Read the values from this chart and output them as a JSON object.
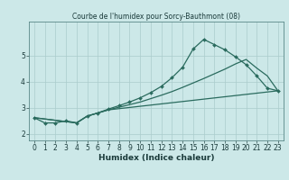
{
  "title": "Courbe de l'humidex pour Sorcy-Bauthmont (08)",
  "xlabel": "Humidex (Indice chaleur)",
  "background_color": "#cce8e8",
  "grid_color": "#aacccc",
  "line_color": "#2a6b5e",
  "xlim": [
    -0.5,
    23.5
  ],
  "ylim": [
    1.75,
    6.3
  ],
  "yticks": [
    2,
    3,
    4,
    5
  ],
  "xticks": [
    0,
    1,
    2,
    3,
    4,
    5,
    6,
    7,
    8,
    9,
    10,
    11,
    12,
    13,
    14,
    15,
    16,
    17,
    18,
    19,
    20,
    21,
    22,
    23
  ],
  "line1_x": [
    0,
    1,
    2,
    3,
    4,
    5,
    6,
    7,
    8,
    9,
    10,
    11,
    12,
    13,
    14,
    15,
    16,
    17,
    18,
    19,
    20,
    21,
    22,
    23
  ],
  "line1_y": [
    2.62,
    2.42,
    2.42,
    2.5,
    2.42,
    2.68,
    2.8,
    2.95,
    3.08,
    3.22,
    3.38,
    3.58,
    3.82,
    4.15,
    4.55,
    5.25,
    5.62,
    5.42,
    5.22,
    4.95,
    4.65,
    4.22,
    3.75,
    3.65
  ],
  "line2_x": [
    0,
    4,
    5,
    6,
    7,
    23
  ],
  "line2_y": [
    2.62,
    2.42,
    2.68,
    2.8,
    2.92,
    3.65
  ],
  "line3_x": [
    0,
    4,
    5,
    6,
    7,
    8,
    9,
    10,
    11,
    12,
    13,
    14,
    15,
    16,
    17,
    18,
    19,
    20,
    21,
    22,
    23
  ],
  "line3_y": [
    2.62,
    2.42,
    2.68,
    2.8,
    2.92,
    3.02,
    3.12,
    3.22,
    3.35,
    3.48,
    3.62,
    3.78,
    3.95,
    4.12,
    4.3,
    4.48,
    4.68,
    4.85,
    4.52,
    4.22,
    3.65
  ]
}
